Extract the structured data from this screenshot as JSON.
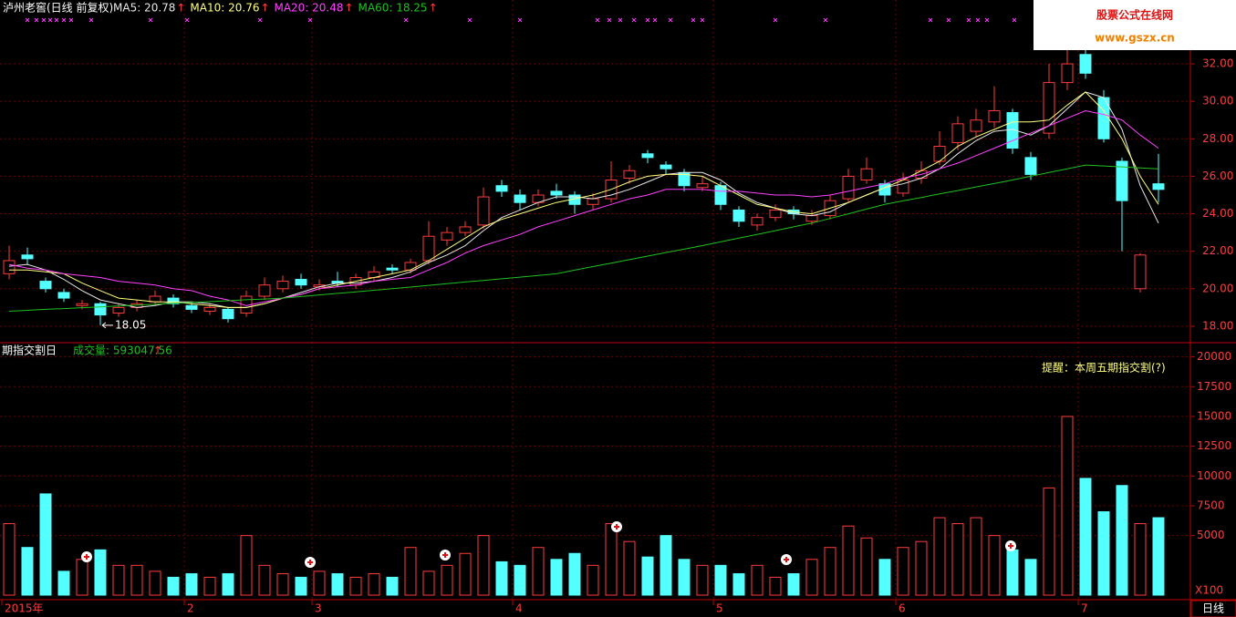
{
  "chart_data": {
    "type": "candlestick",
    "title": "泸州老窖(日线 前复权)",
    "arrow": "↑",
    "up_color": "#ff3c3c",
    "down_color": "#54ffff",
    "grid": true,
    "categories": [
      "2015年",
      null,
      null,
      null,
      null,
      null,
      null,
      null,
      null,
      null,
      "2",
      null,
      null,
      null,
      null,
      null,
      null,
      "3",
      null,
      null,
      null,
      null,
      null,
      null,
      null,
      null,
      null,
      null,
      "4",
      null,
      null,
      null,
      null,
      null,
      null,
      null,
      null,
      null,
      null,
      "5",
      null,
      null,
      null,
      null,
      null,
      null,
      null,
      null,
      null,
      "6",
      null,
      null,
      null,
      null,
      null,
      null,
      null,
      null,
      null,
      "7",
      null,
      null,
      null,
      null
    ],
    "candles": [
      [
        20.8,
        22.3,
        20.5,
        21.5
      ],
      [
        21.8,
        22.2,
        21.3,
        21.6
      ],
      [
        20.4,
        20.6,
        19.8,
        20.0
      ],
      [
        19.8,
        20.0,
        19.3,
        19.5
      ],
      [
        19.1,
        19.4,
        18.9,
        19.2
      ],
      [
        19.2,
        19.3,
        18.05,
        18.6
      ],
      [
        18.7,
        19.2,
        18.5,
        19.0
      ],
      [
        19.0,
        19.4,
        18.8,
        19.2
      ],
      [
        19.3,
        19.9,
        19.1,
        19.6
      ],
      [
        19.5,
        19.7,
        19.0,
        19.2
      ],
      [
        19.1,
        19.3,
        18.7,
        18.9
      ],
      [
        18.8,
        19.2,
        18.6,
        19.0
      ],
      [
        18.9,
        19.0,
        18.2,
        18.4
      ],
      [
        18.7,
        19.9,
        18.5,
        19.6
      ],
      [
        19.6,
        20.6,
        19.4,
        20.2
      ],
      [
        20.0,
        20.7,
        19.8,
        20.4
      ],
      [
        20.5,
        20.8,
        20.0,
        20.2
      ],
      [
        20.1,
        20.5,
        19.9,
        20.2
      ],
      [
        20.4,
        20.9,
        20.1,
        20.3
      ],
      [
        20.2,
        20.8,
        20.0,
        20.6
      ],
      [
        20.6,
        21.2,
        20.4,
        20.9
      ],
      [
        21.1,
        21.3,
        20.8,
        21.0
      ],
      [
        21.0,
        21.6,
        20.8,
        21.4
      ],
      [
        21.5,
        23.6,
        21.3,
        22.8
      ],
      [
        22.6,
        23.3,
        22.3,
        23.0
      ],
      [
        23.0,
        23.6,
        22.8,
        23.3
      ],
      [
        23.4,
        25.4,
        23.2,
        24.9
      ],
      [
        25.5,
        25.8,
        24.9,
        25.2
      ],
      [
        25.0,
        25.3,
        24.2,
        24.6
      ],
      [
        24.6,
        25.3,
        24.4,
        25.0
      ],
      [
        25.2,
        25.6,
        24.8,
        25.0
      ],
      [
        25.0,
        25.2,
        24.0,
        24.5
      ],
      [
        24.5,
        25.1,
        24.2,
        24.8
      ],
      [
        24.8,
        26.8,
        24.6,
        25.8
      ],
      [
        25.9,
        26.6,
        25.6,
        26.3
      ],
      [
        27.2,
        27.4,
        26.7,
        27.0
      ],
      [
        26.6,
        26.8,
        26.1,
        26.4
      ],
      [
        26.2,
        26.4,
        25.2,
        25.5
      ],
      [
        25.4,
        26.0,
        25.2,
        25.6
      ],
      [
        25.5,
        25.7,
        24.2,
        24.5
      ],
      [
        24.2,
        24.4,
        23.3,
        23.6
      ],
      [
        23.4,
        24.0,
        23.1,
        23.8
      ],
      [
        23.8,
        24.5,
        23.6,
        24.2
      ],
      [
        24.2,
        24.4,
        23.7,
        24.0
      ],
      [
        23.6,
        24.2,
        23.4,
        23.9
      ],
      [
        23.9,
        25.0,
        23.7,
        24.7
      ],
      [
        24.8,
        26.4,
        24.6,
        26.0
      ],
      [
        25.8,
        27.0,
        25.6,
        26.4
      ],
      [
        25.6,
        25.8,
        24.6,
        25.0
      ],
      [
        25.1,
        26.2,
        24.9,
        25.8
      ],
      [
        25.9,
        26.8,
        25.6,
        26.3
      ],
      [
        26.8,
        28.4,
        26.6,
        27.6
      ],
      [
        27.8,
        29.2,
        27.4,
        28.8
      ],
      [
        28.4,
        29.6,
        28.1,
        29.0
      ],
      [
        28.9,
        30.8,
        28.6,
        29.5
      ],
      [
        29.4,
        29.6,
        27.2,
        27.5
      ],
      [
        27.0,
        27.3,
        25.8,
        26.1
      ],
      [
        28.3,
        32.0,
        28.0,
        31.0
      ],
      [
        31.0,
        33.2,
        30.6,
        32.0
      ],
      [
        32.5,
        33.0,
        31.2,
        31.5
      ],
      [
        30.2,
        30.6,
        27.8,
        28.0
      ],
      [
        26.8,
        27.0,
        22.0,
        24.7
      ],
      [
        20.0,
        21.9,
        19.8,
        21.8
      ],
      [
        25.6,
        27.2,
        24.6,
        25.3
      ]
    ],
    "series": [
      {
        "name": "MA5: 20.78",
        "color": "#e8e8e8",
        "values": [
          21.2,
          21.3,
          21.0,
          20.5,
          19.9,
          19.4,
          19.2,
          19.0,
          19.1,
          19.3,
          19.3,
          19.2,
          19.0,
          19.0,
          19.2,
          19.5,
          19.8,
          20.1,
          20.3,
          20.3,
          20.4,
          20.6,
          20.9,
          21.4,
          21.8,
          22.3,
          23.1,
          23.8,
          24.2,
          24.6,
          24.9,
          24.9,
          24.8,
          25.0,
          25.3,
          25.7,
          26.1,
          26.2,
          26.2,
          25.8,
          25.1,
          24.6,
          24.3,
          24.0,
          23.9,
          24.1,
          24.6,
          25.0,
          25.4,
          25.6,
          25.9,
          26.4,
          27.2,
          27.9,
          28.4,
          28.5,
          28.2,
          28.7,
          29.6,
          30.5,
          30.2,
          28.5,
          25.5,
          23.5
        ]
      },
      {
        "name": "MA10: 20.76",
        "color": "#ffff80",
        "values": [
          21.0,
          21.0,
          20.9,
          20.8,
          20.3,
          19.9,
          19.5,
          19.4,
          19.3,
          19.3,
          19.2,
          19.1,
          19.0,
          19.0,
          19.2,
          19.5,
          19.7,
          20.0,
          20.2,
          20.4,
          20.6,
          20.8,
          21.0,
          21.5,
          22.1,
          22.7,
          23.3,
          23.7,
          24.0,
          24.3,
          24.6,
          24.8,
          25.0,
          25.3,
          25.7,
          26.0,
          26.1,
          26.1,
          26.0,
          25.5,
          25.0,
          24.5,
          24.3,
          24.1,
          24.0,
          24.3,
          24.6,
          25.0,
          25.4,
          25.8,
          26.3,
          26.8,
          27.6,
          28.1,
          28.5,
          28.9,
          28.9,
          29.0,
          29.8,
          30.5,
          29.5,
          28.0,
          26.0,
          24.5
        ]
      },
      {
        "name": "MA20: 20.48",
        "color": "#ff40ff",
        "values": [
          21.3,
          21.1,
          21.0,
          20.8,
          20.7,
          20.6,
          20.4,
          20.3,
          20.2,
          20.0,
          19.9,
          19.6,
          19.4,
          19.1,
          19.3,
          19.5,
          19.7,
          20.0,
          20.1,
          20.2,
          20.4,
          20.5,
          20.6,
          21.0,
          21.4,
          21.9,
          22.3,
          22.6,
          22.9,
          23.3,
          23.6,
          23.9,
          24.2,
          24.5,
          24.8,
          25.0,
          25.3,
          25.3,
          25.3,
          25.2,
          25.2,
          25.1,
          25.0,
          25.0,
          24.9,
          25.0,
          25.2,
          25.4,
          25.6,
          25.9,
          26.1,
          26.4,
          26.7,
          27.1,
          27.5,
          27.9,
          28.3,
          28.7,
          29.1,
          29.5,
          29.3,
          29.0,
          28.2,
          27.5
        ]
      },
      {
        "name": "MA60: 18.25",
        "color": "#20c020",
        "values": [
          18.8,
          18.85,
          18.9,
          18.94,
          18.99,
          19.03,
          19.08,
          19.13,
          19.17,
          19.22,
          19.27,
          19.31,
          19.36,
          19.41,
          19.45,
          19.5,
          19.58,
          19.67,
          19.75,
          19.83,
          19.92,
          20.0,
          20.09,
          20.18,
          20.27,
          20.36,
          20.44,
          20.53,
          20.62,
          20.71,
          20.8,
          20.99,
          21.18,
          21.36,
          21.55,
          21.74,
          21.93,
          22.11,
          22.3,
          22.5,
          22.7,
          22.9,
          23.1,
          23.3,
          23.5,
          23.75,
          24.0,
          24.25,
          24.5,
          24.69,
          24.87,
          25.06,
          25.24,
          25.43,
          25.61,
          25.8,
          26.0,
          26.2,
          26.4,
          26.6,
          26.55,
          26.5,
          26.45,
          26.4
        ]
      }
    ],
    "ylim": [
      17.17,
      34.92
    ],
    "yticks": [
      {
        "value": 18,
        "label": "18.00"
      },
      {
        "value": 20,
        "label": "20.00"
      },
      {
        "value": 22,
        "label": "22.00"
      },
      {
        "value": 24,
        "label": "24.00"
      },
      {
        "value": 26,
        "label": "26.00"
      },
      {
        "value": 28,
        "label": "28.00"
      },
      {
        "value": 30,
        "label": "30.00"
      },
      {
        "value": 32,
        "label": "32.00"
      }
    ],
    "low_label": "18.05",
    "volume": {
      "type": "bar",
      "title": "期指交割日",
      "name": "成交量: 593047.56",
      "note": "提醒：本周五期指交割(?)",
      "unit": "X100",
      "values": [
        6000,
        4000,
        8500,
        2000,
        3000,
        3800,
        2500,
        2500,
        2000,
        1500,
        1800,
        1500,
        1800,
        5000,
        2500,
        1800,
        1500,
        2000,
        1800,
        1500,
        1800,
        1500,
        4000,
        2000,
        2500,
        3500,
        5000,
        2800,
        2500,
        4000,
        3000,
        3500,
        2500,
        6000,
        4500,
        3200,
        5000,
        3000,
        2500,
        2500,
        1800,
        2500,
        1500,
        1800,
        3000,
        4000,
        5800,
        4800,
        3000,
        4000,
        4500,
        6500,
        6000,
        6500,
        5000,
        3800,
        3000,
        9000,
        15000,
        9800,
        7000,
        9200,
        6000,
        6500
      ],
      "ylim": [
        0,
        21040
      ],
      "yticks": [
        5000,
        7500,
        10000,
        12500,
        15000,
        17500,
        20000
      ]
    },
    "period": "日线",
    "watermark": {
      "title": "股票公式在线网",
      "url": "www.gszx.cn"
    }
  }
}
